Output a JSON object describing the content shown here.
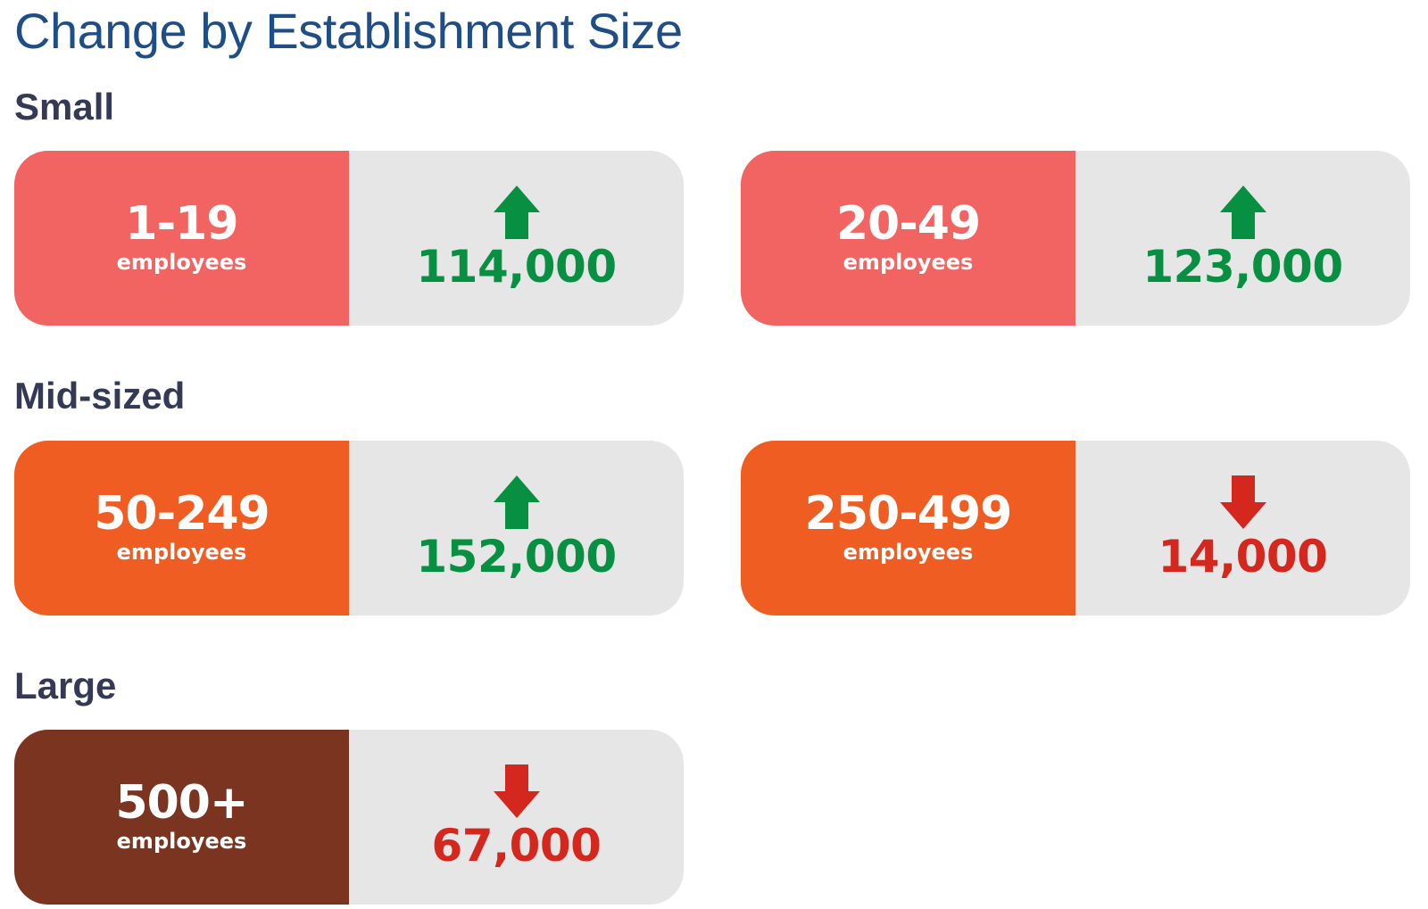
{
  "title": "Change by Establishment Size",
  "colors": {
    "title": "#1f4e86",
    "section": "#343a56",
    "small": "#f26461",
    "mid": "#f05d22",
    "large": "#7b3420",
    "panel": "#e6e6e6",
    "up": "#079041",
    "down": "#d4271d"
  },
  "sections": [
    {
      "label": "Small",
      "cards": [
        {
          "range": "1-19",
          "unit": "employees",
          "direction": "up",
          "icon": "arrow-up-icon",
          "value": "114,000"
        },
        {
          "range": "20-49",
          "unit": "employees",
          "direction": "up",
          "icon": "arrow-up-icon",
          "value": "123,000"
        }
      ]
    },
    {
      "label": "Mid-sized",
      "cards": [
        {
          "range": "50-249",
          "unit": "employees",
          "direction": "up",
          "icon": "arrow-up-icon",
          "value": "152,000"
        },
        {
          "range": "250-499",
          "unit": "employees",
          "direction": "down",
          "icon": "arrow-down-icon",
          "value": "14,000"
        }
      ]
    },
    {
      "label": "Large",
      "cards": [
        {
          "range": "500+",
          "unit": "employees",
          "direction": "down",
          "icon": "arrow-down-icon",
          "value": "67,000"
        }
      ]
    }
  ]
}
